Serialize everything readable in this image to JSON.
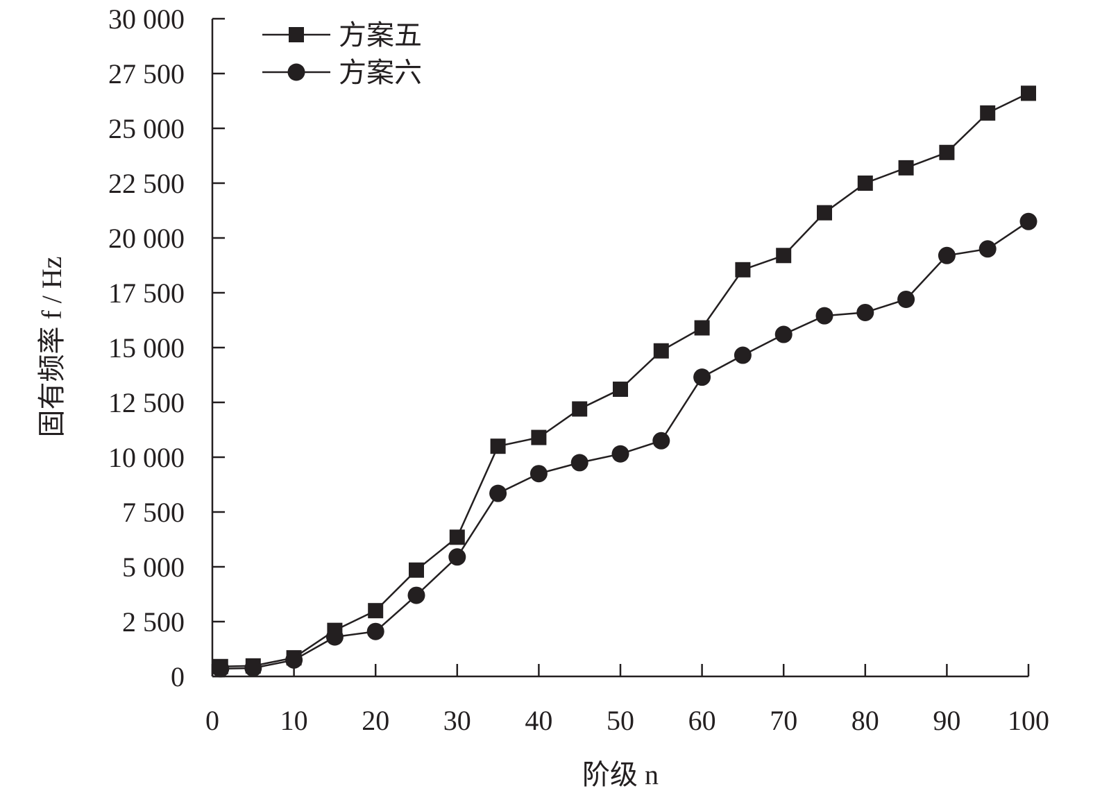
{
  "chart_data": {
    "type": "line",
    "title": "",
    "xlabel": "阶级 n",
    "ylabel": "固有频率 f / Hz",
    "xlim": [
      0,
      100
    ],
    "ylim": [
      0,
      30000
    ],
    "x_ticks": [
      0,
      10,
      20,
      30,
      40,
      50,
      60,
      70,
      80,
      90,
      100
    ],
    "x_tick_labels": [
      "0",
      "10",
      "20",
      "30",
      "40",
      "50",
      "60",
      "70",
      "80",
      "90",
      "100"
    ],
    "y_ticks": [
      0,
      2500,
      5000,
      7500,
      10000,
      12500,
      15000,
      17500,
      20000,
      22500,
      25000,
      27500,
      30000
    ],
    "y_tick_labels": [
      "0",
      "2 500",
      "5 000",
      "7 500",
      "10 000",
      "12 500",
      "15 000",
      "17 500",
      "20 000",
      "22 500",
      "25 000",
      "27 500",
      "30 000"
    ],
    "grid": false,
    "legend_position": "top-left",
    "x": [
      1,
      5,
      10,
      15,
      20,
      25,
      30,
      35,
      40,
      45,
      50,
      55,
      60,
      65,
      70,
      75,
      80,
      85,
      90,
      95,
      100
    ],
    "series": [
      {
        "name": "方案五",
        "marker": "square",
        "values": [
          450,
          480,
          850,
          2100,
          3000,
          4850,
          6350,
          10500,
          10900,
          12200,
          13100,
          14850,
          15900,
          18550,
          19200,
          21150,
          22500,
          23200,
          23900,
          25700,
          26600
        ]
      },
      {
        "name": "方案六",
        "marker": "circle",
        "values": [
          350,
          380,
          750,
          1800,
          2050,
          3700,
          5450,
          8350,
          9250,
          9750,
          10150,
          10750,
          13650,
          14650,
          15600,
          16450,
          16600,
          17200,
          19200,
          19500,
          20750
        ]
      }
    ],
    "colors": {
      "line": "#231f20",
      "marker": "#231f20",
      "axis": "#231f20"
    }
  }
}
